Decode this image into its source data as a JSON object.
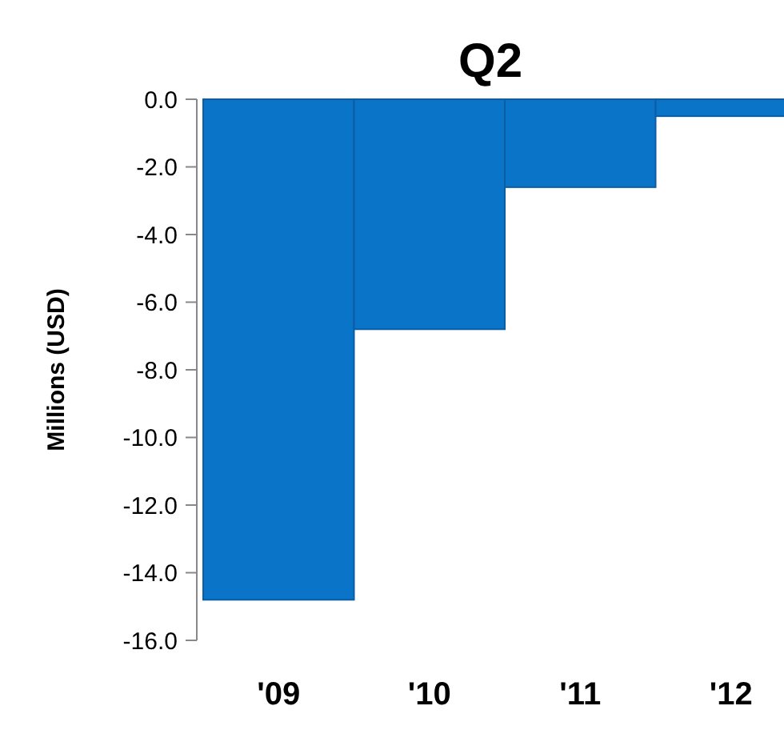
{
  "chart_data": {
    "type": "bar",
    "title": "Q2",
    "ylabel": "Millions (USD)",
    "categories": [
      "'09",
      "'10",
      "'11",
      "'12"
    ],
    "values": [
      -14.8,
      -6.8,
      -2.6,
      -0.5
    ],
    "color": "#0a74c8",
    "ylim": [
      -16,
      0
    ],
    "yticks": [
      {
        "value": 0,
        "label": "0.0"
      },
      {
        "value": -2,
        "label": "-2.0"
      },
      {
        "value": -4,
        "label": "-4.0"
      },
      {
        "value": -6,
        "label": "-6.0"
      },
      {
        "value": -8,
        "label": "-8.0"
      },
      {
        "value": -10,
        "label": "-10.0"
      },
      {
        "value": -12,
        "label": "-12.0"
      },
      {
        "value": -14,
        "label": "-14.0"
      },
      {
        "value": -16,
        "label": "-16.0"
      }
    ],
    "grid": false
  }
}
